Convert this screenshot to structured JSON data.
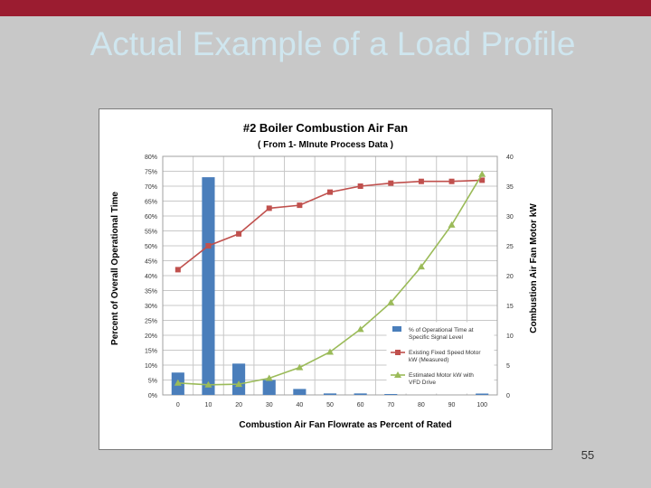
{
  "slide": {
    "title": "Actual Example of a Load Profile",
    "page_number": "55",
    "colors": {
      "header_bar": "#9b1c30",
      "background": "#c8c8c8",
      "title_text": "#cfe6ef"
    }
  },
  "chart_data": {
    "type": "bar",
    "title": "#2 Boiler Combustion Air Fan",
    "subtitle": "( From 1- MInute Process Data )",
    "xlabel": "Combustion Air Fan Flowrate as Percent of Rated",
    "ylabel": "Percent of Overall Operational Time",
    "y2label": "Combustion Air Fan Motor kW",
    "categories": [
      "0",
      "10",
      "20",
      "30",
      "40",
      "50",
      "60",
      "70",
      "80",
      "90",
      "100"
    ],
    "ylim": [
      0,
      80
    ],
    "y_ticks": [
      "0%",
      "5%",
      "10%",
      "15%",
      "20%",
      "25%",
      "30%",
      "35%",
      "40%",
      "45%",
      "50%",
      "55%",
      "60%",
      "65%",
      "70%",
      "75%",
      "80%"
    ],
    "y2lim": [
      0,
      40
    ],
    "y2_ticks": [
      "0",
      "5",
      "10",
      "15",
      "20",
      "25",
      "30",
      "35",
      "40"
    ],
    "grid": true,
    "legend_position": "bottom-right",
    "series": [
      {
        "name": "% of Operational Time at Specific Signal Level",
        "type": "bar",
        "axis": "left",
        "color": "#4a7ebb",
        "values": [
          7.5,
          73,
          10.5,
          5,
          2,
          0.5,
          0.5,
          0.3,
          0,
          0,
          0.5
        ]
      },
      {
        "name": "Existing Fixed Speed Motor kW (Measured)",
        "type": "line",
        "axis": "right",
        "color": "#c0504d",
        "marker": "square",
        "values": [
          21,
          25,
          27,
          31.3,
          31.8,
          34,
          35,
          35.5,
          35.8,
          35.8,
          36
        ]
      },
      {
        "name": "Estimated Motor kW with VFD Drive",
        "type": "line",
        "axis": "right",
        "color": "#9bbb59",
        "marker": "triangle",
        "values": [
          2,
          1.7,
          1.8,
          2.8,
          4.6,
          7.2,
          11,
          15.5,
          21.5,
          28.5,
          37
        ]
      }
    ]
  }
}
